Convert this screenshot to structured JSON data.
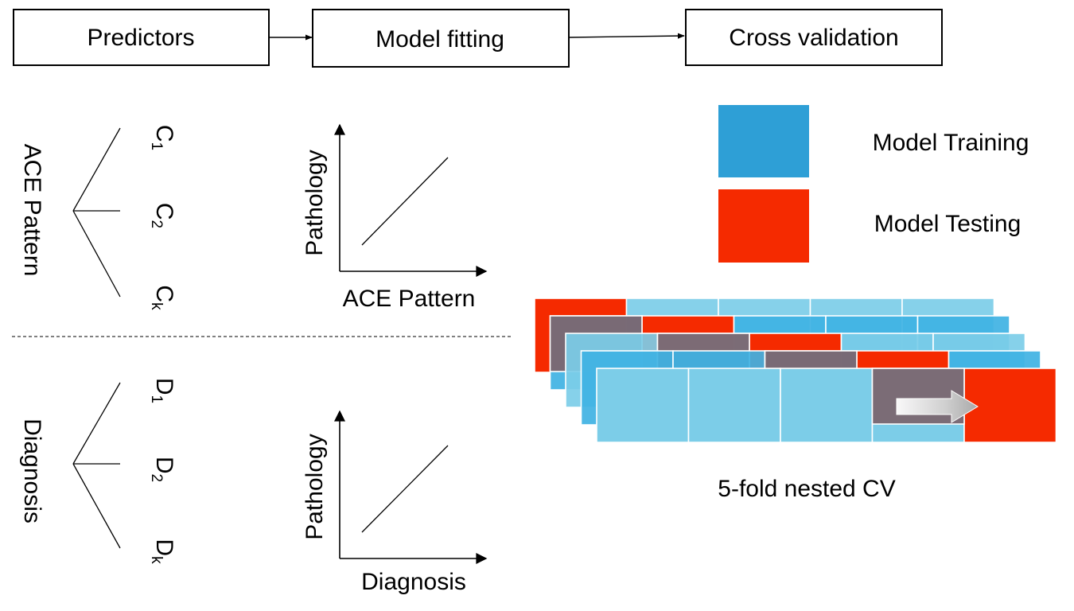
{
  "header": {
    "steps": [
      {
        "label": "Predictors"
      },
      {
        "label": "Model fitting"
      },
      {
        "label": "Cross validation"
      }
    ]
  },
  "predictors": {
    "ace": {
      "group_label": "ACE Pattern",
      "branches": [
        {
          "letter": "C",
          "sub": "1"
        },
        {
          "letter": "C",
          "sub": "2"
        },
        {
          "letter": "C",
          "sub": "k"
        }
      ]
    },
    "diagnosis": {
      "group_label": "Diagnosis",
      "branches": [
        {
          "letter": "D",
          "sub": "1"
        },
        {
          "letter": "D",
          "sub": "2"
        },
        {
          "letter": "D",
          "sub": "k"
        }
      ]
    }
  },
  "model_fitting": {
    "ace_plot": {
      "ylabel": "Pathology",
      "xlabel": "ACE Pattern"
    },
    "diagnosis_plot": {
      "ylabel": "Pathology",
      "xlabel": "Diagnosis"
    }
  },
  "cross_validation": {
    "legend": [
      {
        "label": "Model Training",
        "color": "#2e9fd6"
      },
      {
        "label": "Model Testing",
        "color": "#f52a00"
      }
    ],
    "caption": "5-fold nested CV",
    "colors": {
      "light_blue": "#7ccde8",
      "mid_blue": "#3fb2e3",
      "deep_blue": "#129fd8",
      "steel": "#3d7fa0",
      "mauve": "#7b6670",
      "red": "#f52a00"
    }
  }
}
